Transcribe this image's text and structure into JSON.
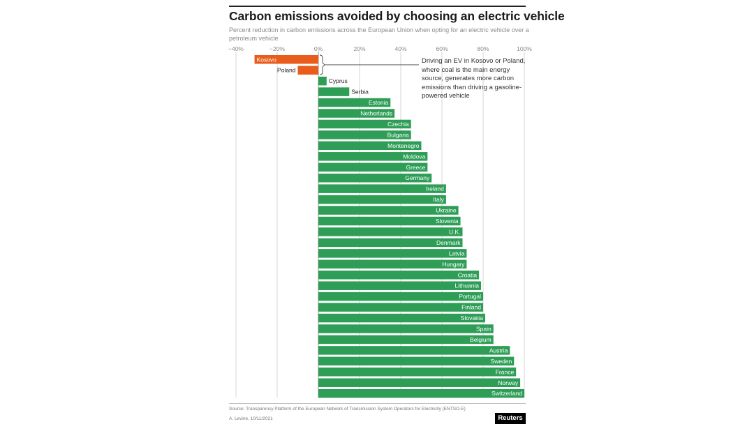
{
  "title": "Carbon emissions avoided by choosing an electric vehicle",
  "subtitle": "Percent reduction in carbon emissions across the European Union when opting for an electric vehicle over a petroleum vehicle",
  "annotation": "Driving an EV in Kosovo or Poland, where coal is the main energy source, generates more carbon emissions than driving a gasoline-powered vehicle",
  "source": "Source: Transparency Platform of the European Network of Transmission System Operators for Electricity (ENTSO-E)",
  "byline": "A. Levine, 10/11/2021",
  "logo": "Reuters",
  "colors": {
    "positive": "#2e9e57",
    "negative": "#e85d1c"
  },
  "chart_data": {
    "type": "bar",
    "orientation": "horizontal",
    "xlim": [
      -40,
      100
    ],
    "x_ticks": [
      -40,
      -20,
      0,
      20,
      40,
      60,
      80,
      100
    ],
    "x_tick_labels": [
      "−40%",
      "−20%",
      "0%",
      "20%",
      "40%",
      "60%",
      "80%",
      "100%"
    ],
    "grid": true,
    "categories": [
      "Kosovo",
      "Poland",
      "Cyprus",
      "Serbia",
      "Estonia",
      "Netherlands",
      "Czechia",
      "Bulgaria",
      "Montenegro",
      "Moldova",
      "Greece",
      "Germany",
      "Ireland",
      "Italy",
      "Ukraine",
      "Slovenia",
      "U.K.",
      "Denmark",
      "Latvia",
      "Hungary",
      "Croatia",
      "Lithuania",
      "Portugal",
      "Finland",
      "Slovakia",
      "Spain",
      "Belgium",
      "Austria",
      "Sweden",
      "France",
      "Norway",
      "Switzerland"
    ],
    "values": [
      -31,
      -10,
      4,
      15,
      35,
      37,
      45,
      45,
      50,
      53,
      53,
      55,
      62,
      62,
      68,
      69,
      70,
      70,
      72,
      72,
      78,
      79,
      80,
      80,
      81,
      85,
      85,
      93,
      95,
      96,
      98,
      100
    ]
  }
}
